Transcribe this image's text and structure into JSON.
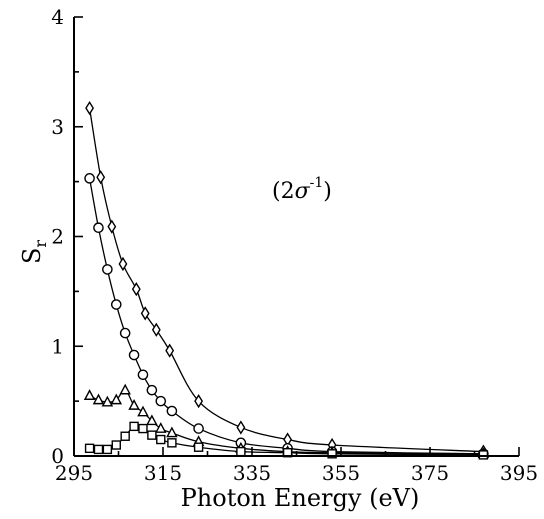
{
  "chart_data": {
    "type": "scatter",
    "title": "",
    "xlabel": "Photon Energy (eV)",
    "ylabel_main": "S",
    "ylabel_sub": "r",
    "annotation": {
      "open": "(2",
      "sigma": "σ",
      "sup": "-1",
      "close": ")"
    },
    "xlim": [
      295,
      395
    ],
    "ylim": [
      0,
      4
    ],
    "xticks": [
      295,
      315,
      335,
      355,
      375,
      395
    ],
    "yticks": [
      0,
      1,
      2,
      3,
      4
    ],
    "grid": false,
    "legend": "none",
    "series": [
      {
        "marker": "diamond",
        "connected": true,
        "x": [
          298.5,
          301,
          303.5,
          306,
          309,
          311,
          313.5,
          316.5,
          323,
          332.5,
          343,
          353,
          387
        ],
        "y": [
          3.17,
          2.54,
          2.09,
          1.75,
          1.52,
          1.3,
          1.15,
          0.96,
          0.5,
          0.26,
          0.15,
          0.1,
          0.04
        ]
      },
      {
        "marker": "circle",
        "connected": true,
        "x": [
          298.5,
          300.5,
          302.5,
          304.5,
          306.5,
          308.5,
          310.5,
          312.5,
          314.5,
          317,
          323,
          332.5,
          343,
          353,
          387
        ],
        "y": [
          2.53,
          2.08,
          1.7,
          1.38,
          1.12,
          0.92,
          0.74,
          0.6,
          0.5,
          0.41,
          0.25,
          0.12,
          0.07,
          0.04,
          0.02
        ]
      },
      {
        "marker": "triangle",
        "connected": true,
        "x": [
          298.5,
          300.5,
          302.5,
          304.5,
          306.5,
          308.5,
          310.5,
          312.5,
          314.5,
          317,
          323,
          332.5,
          343,
          353,
          387
        ],
        "y": [
          0.55,
          0.51,
          0.49,
          0.51,
          0.6,
          0.46,
          0.4,
          0.32,
          0.25,
          0.21,
          0.13,
          0.07,
          0.04,
          0.03,
          0.02
        ]
      },
      {
        "marker": "square",
        "connected": true,
        "x": [
          298.5,
          300.5,
          302.5,
          304.5,
          306.5,
          308.5,
          310.5,
          312.5,
          314.5,
          317,
          323,
          332.5,
          343,
          353,
          387
        ],
        "y": [
          0.07,
          0.06,
          0.06,
          0.1,
          0.18,
          0.27,
          0.25,
          0.19,
          0.15,
          0.12,
          0.08,
          0.04,
          0.03,
          0.02,
          0.01
        ]
      }
    ]
  }
}
